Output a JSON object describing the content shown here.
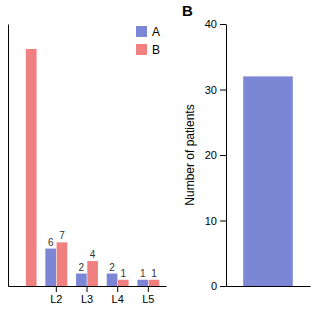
{
  "chart_data": [
    {
      "type": "bar",
      "categories": [
        null,
        "L2",
        "L3",
        "L4",
        "L5"
      ],
      "series": [
        {
          "name": "A",
          "color": "#7b86d4",
          "values": [
            null,
            6,
            2,
            2,
            1
          ],
          "value_labels": [
            null,
            "6",
            "2",
            "2",
            "1"
          ]
        },
        {
          "name": "B",
          "color": "#f08080",
          "values": [
            38,
            7,
            4,
            1,
            1
          ],
          "value_labels": [
            null,
            "7",
            "4",
            "1",
            "1"
          ]
        }
      ],
      "ylim": [
        0,
        42
      ],
      "legend": "upper right",
      "data_labels": true,
      "tick_labels": "x"
    },
    {
      "type": "bar",
      "title": "B",
      "categories": [
        null
      ],
      "values": [
        32
      ],
      "color": "#7b86d4",
      "ylabel": "Number of patients",
      "ylim": [
        0,
        40
      ],
      "yticks": [
        0,
        10,
        20,
        30,
        40
      ],
      "tick_labels": "y"
    }
  ]
}
